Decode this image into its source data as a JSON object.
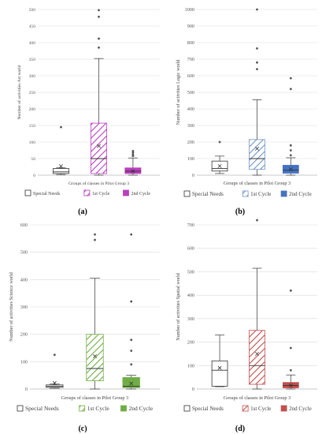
{
  "captions": [
    "(a)",
    "(b)",
    "(c)",
    "(d)"
  ],
  "colors": {
    "special_needs": "#555555",
    "first_cycle_a": "#b93fbf",
    "second_cycle_a": "#b93fbf",
    "first_cycle_b": "#6f96c6",
    "second_cycle_b": "#4472c4",
    "first_cycle_c": "#70ad47",
    "second_cycle_c": "#70ad47",
    "first_cycle_d": "#c0504d",
    "second_cycle_d": "#c0504d",
    "grid": "#d9d9d9",
    "axis_text": "#595959",
    "point": "#555555"
  },
  "chart_data": [
    {
      "type": "box",
      "ylabel": "Number of activities Art world",
      "xlabel": "Groups of classes in Pilot Group 3",
      "ylim": [
        0,
        500
      ],
      "yticks": [
        0,
        50,
        100,
        150,
        200,
        250,
        300,
        350,
        400,
        450,
        500
      ],
      "grid": true,
      "legend_position": "bottom",
      "legend": [
        "Special Needs",
        "1st Cycle",
        "2nd Cycle"
      ],
      "series": [
        {
          "name": "Special Needs",
          "min": 2,
          "q1": 5,
          "median": 10,
          "q3": 20,
          "max": 22,
          "mean": 27,
          "outliers": [
            145
          ]
        },
        {
          "name": "1st Cycle",
          "min": 0,
          "q1": 5,
          "median": 50,
          "q3": 157,
          "max": 352,
          "mean": 88,
          "outliers": [
            385,
            412,
            478,
            498
          ]
        },
        {
          "name": "2nd Cycle",
          "min": 0,
          "q1": 5,
          "median": 12,
          "q3": 22,
          "max": 52,
          "mean": 12,
          "outliers": [
            58,
            62,
            68,
            73
          ]
        }
      ]
    },
    {
      "type": "box",
      "ylabel": "Number of activities Logic world",
      "xlabel": "Groups of classes in Pilot Group 3",
      "ylim": [
        0,
        1000
      ],
      "yticks": [
        0,
        100,
        200,
        300,
        400,
        500,
        600,
        700,
        800,
        900,
        1000
      ],
      "grid": true,
      "legend_position": "bottom",
      "legend": [
        "Special Needs",
        "1st Cycle",
        "2nd Cycle"
      ],
      "series": [
        {
          "name": "Special Needs",
          "min": 10,
          "q1": 25,
          "median": 40,
          "q3": 85,
          "max": 115,
          "mean": 55,
          "outliers": [
            200
          ]
        },
        {
          "name": "1st Cycle",
          "min": 0,
          "q1": 35,
          "median": 100,
          "q3": 215,
          "max": 455,
          "mean": 160,
          "outliers": [
            640,
            680,
            765,
            1000
          ]
        },
        {
          "name": "2nd Cycle",
          "min": 0,
          "q1": 12,
          "median": 30,
          "q3": 60,
          "max": 105,
          "mean": 35,
          "outliers": [
            120,
            150,
            180,
            520,
            585
          ]
        }
      ]
    },
    {
      "type": "box",
      "ylabel": "Number of activities Science world",
      "xlabel": "Groups of classes in Pilot Group 3",
      "ylim": [
        0,
        600
      ],
      "yticks": [
        0,
        100,
        200,
        300,
        400,
        500,
        600
      ],
      "grid": true,
      "legend_position": "bottom",
      "legend": [
        "Special Needs",
        "1st Cycle",
        "2nd Cycle"
      ],
      "series": [
        {
          "name": "Special Needs",
          "min": 3,
          "q1": 6,
          "median": 10,
          "q3": 15,
          "max": 18,
          "mean": 22,
          "outliers": [
            125
          ]
        },
        {
          "name": "1st Cycle",
          "min": 0,
          "q1": 30,
          "median": 75,
          "q3": 200,
          "max": 405,
          "mean": 120,
          "outliers": [
            545,
            565
          ]
        },
        {
          "name": "2nd Cycle",
          "min": 0,
          "q1": 5,
          "median": 10,
          "q3": 42,
          "max": 50,
          "mean": 20,
          "outliers": [
            90,
            140,
            180,
            320,
            565
          ]
        }
      ]
    },
    {
      "type": "box",
      "ylabel": "Number of activities Spatial world",
      "xlabel": "Groups of classes in Pilot Group 3",
      "ylim": [
        0,
        700
      ],
      "yticks": [
        0,
        100,
        200,
        300,
        400,
        500,
        600,
        700
      ],
      "grid": true,
      "legend_position": "bottom",
      "legend": [
        "Special Needs",
        "1st Cycle",
        "2nd Cycle"
      ],
      "series": [
        {
          "name": "Special Needs",
          "min": 10,
          "q1": 12,
          "median": 80,
          "q3": 120,
          "max": 230,
          "mean": 90,
          "outliers": []
        },
        {
          "name": "1st Cycle",
          "min": 0,
          "q1": 20,
          "median": 100,
          "q3": 250,
          "max": 515,
          "mean": 150,
          "outliers": [
            720
          ]
        },
        {
          "name": "2nd Cycle",
          "min": 0,
          "q1": 5,
          "median": 15,
          "q3": 28,
          "max": 60,
          "mean": 15,
          "outliers": [
            80,
            175,
            420
          ]
        }
      ]
    }
  ]
}
